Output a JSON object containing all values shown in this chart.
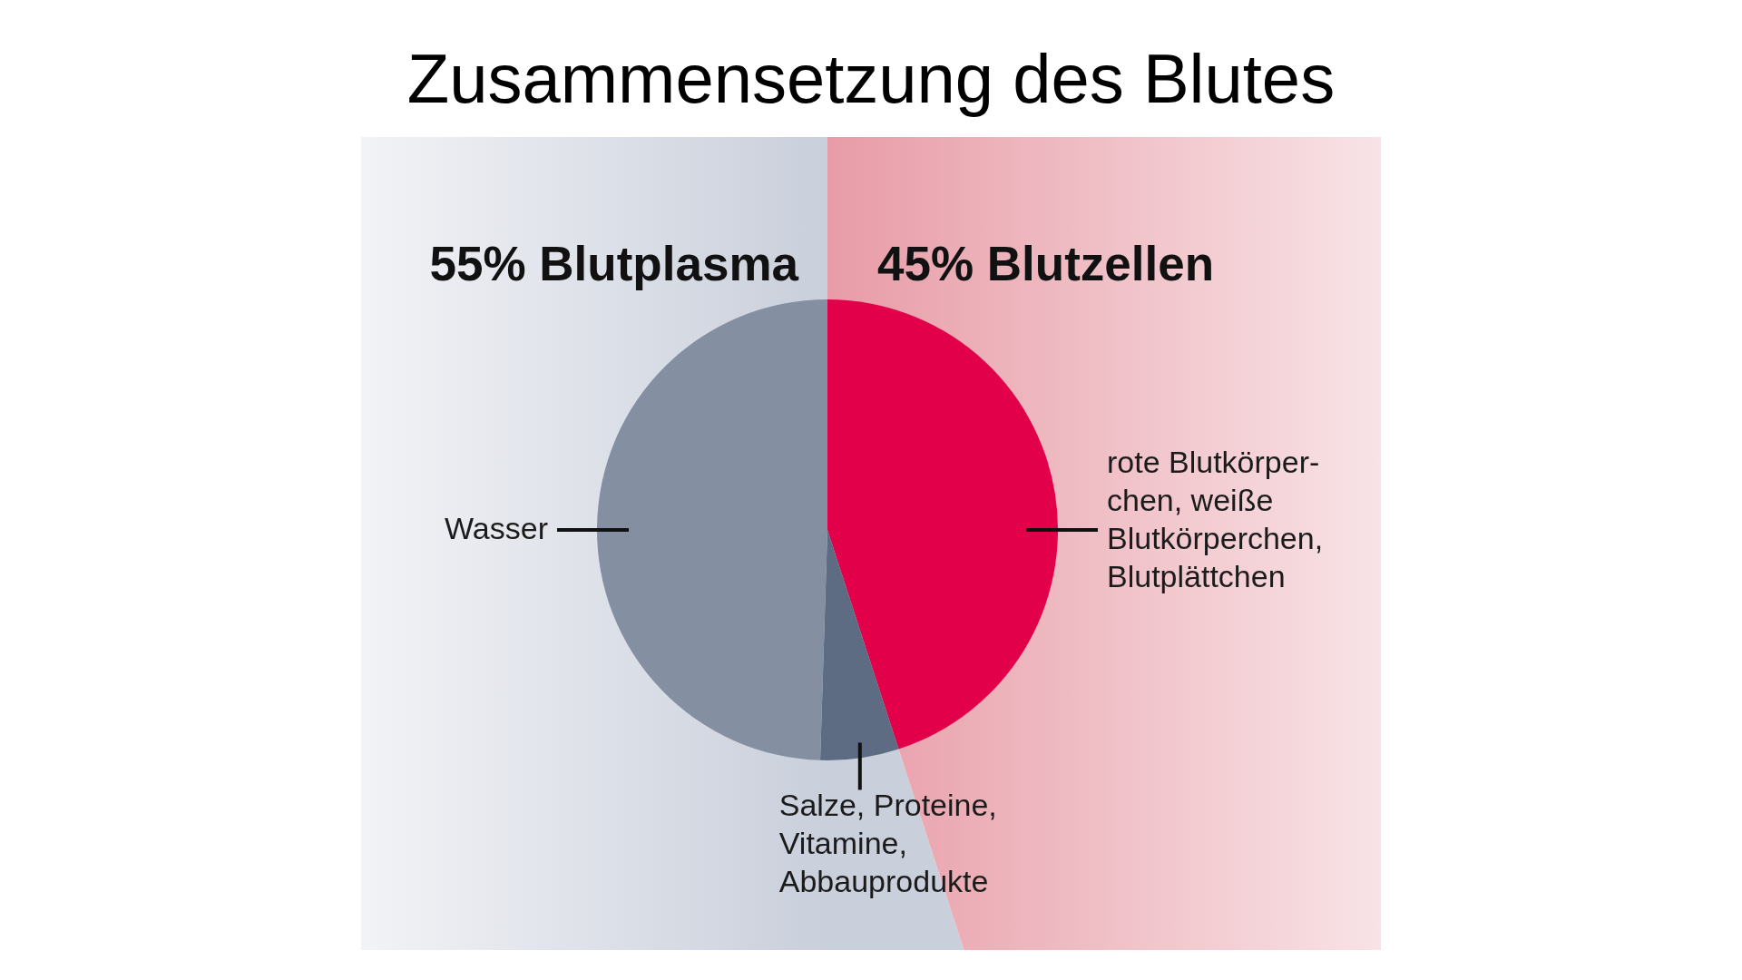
{
  "chart_data": {
    "type": "pie",
    "title": "Zusammensetzung des Blutes",
    "categories": [
      "rote Blutkörper-\nchen, weiße\nBlutkörperchen,\nBlutplättchen",
      "Salze, Proteine,\nVitamine,\nAbbauprodukte",
      "Wasser"
    ],
    "values": [
      45,
      5.5,
      49.5
    ],
    "colors": [
      "#e2004a",
      "#5e6c83",
      "#848fa2"
    ],
    "annotations": [
      "55% Blutplasma",
      "45% Blutzellen"
    ]
  }
}
